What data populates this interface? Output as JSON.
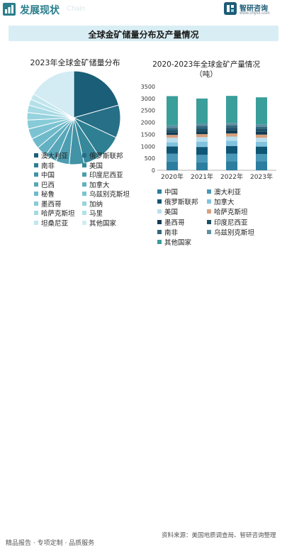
{
  "header": {
    "title": "发展现状",
    "title_en": "Chain",
    "brand_name": "智研咨询",
    "brand_url": "www.chyxx.com"
  },
  "main_title": "全球金矿储量分布及产量情况",
  "footer": {
    "left": "精品报告 · 专项定制 · 品质服务",
    "right": "资料来源：美国地质调查局、智研咨询整理"
  },
  "colors": {
    "accent": "#2a7e8c",
    "title_band": "#d9eef4"
  },
  "icons": {
    "header": "bar-chart-icon",
    "brand": "zhiyan-logo-icon"
  },
  "chart_data": [
    {
      "type": "pie",
      "title": "2023年全球金矿储量分布",
      "categories": [
        "澳大利亚",
        "俄罗斯联邦",
        "南非",
        "美国",
        "中国",
        "印度尼西亚",
        "巴西",
        "加拿大",
        "秘鲁",
        "乌兹别克斯坦",
        "墨西哥",
        "加纳",
        "哈萨克斯坦",
        "马里",
        "坦桑尼亚",
        "其他国家"
      ],
      "values": [
        20,
        11,
        8.5,
        5.5,
        5.0,
        4.5,
        4.0,
        3.5,
        3.5,
        3.5,
        3.0,
        2.5,
        2.5,
        2.0,
        2.0,
        16
      ],
      "colors": [
        "#1b5e78",
        "#266f86",
        "#2e7f92",
        "#37889b",
        "#4193a5",
        "#4d9db0",
        "#58a7b9",
        "#62b0c2",
        "#6ebaca",
        "#7bc3d2",
        "#88cbd8",
        "#97d3de",
        "#a6dae4",
        "#b4e0e9",
        "#c2e6ee",
        "#d3ebf3"
      ],
      "legend_placement": "bottom"
    },
    {
      "type": "bar",
      "stacked": true,
      "title": "2020-2023年全球金矿产量情况",
      "subtitle": "（吨）",
      "categories": [
        "2020年",
        "2021年",
        "2022年",
        "2023年"
      ],
      "ylim": [
        0,
        3500
      ],
      "yticks": [
        0,
        500,
        1000,
        1500,
        2000,
        2500,
        3000,
        3500
      ],
      "series": [
        {
          "name": "中国",
          "color": "#2b7ea0",
          "values": [
            365,
            329,
            372,
            370
          ]
        },
        {
          "name": "澳大利亚",
          "color": "#4a98b8",
          "values": [
            328,
            315,
            320,
            310
          ]
        },
        {
          "name": "俄罗斯联邦",
          "color": "#0f5675",
          "values": [
            305,
            331,
            324,
            310
          ]
        },
        {
          "name": "加拿大",
          "color": "#82c4de",
          "values": [
            170,
            223,
            220,
            200
          ]
        },
        {
          "name": "美国",
          "color": "#b9dfee",
          "values": [
            190,
            187,
            173,
            170
          ]
        },
        {
          "name": "哈萨克斯坦",
          "color": "#d8a07e",
          "values": [
            120,
            125,
            130,
            130
          ]
        },
        {
          "name": "墨西哥",
          "color": "#123c52",
          "values": [
            100,
            118,
            127,
            120
          ]
        },
        {
          "name": "印度尼西亚",
          "color": "#1d4f66",
          "values": [
            100,
            120,
            110,
            110
          ]
        },
        {
          "name": "南非",
          "color": "#33677d",
          "values": [
            96,
            107,
            104,
            100
          ]
        },
        {
          "name": "乌兹别克斯坦",
          "color": "#5f8fa3",
          "values": [
            100,
            101,
            100,
            100
          ]
        },
        {
          "name": "其他国家",
          "color": "#3a9e9a",
          "values": [
            1226,
            1044,
            1130,
            1130
          ]
        }
      ],
      "legend_placement": "bottom"
    }
  ]
}
